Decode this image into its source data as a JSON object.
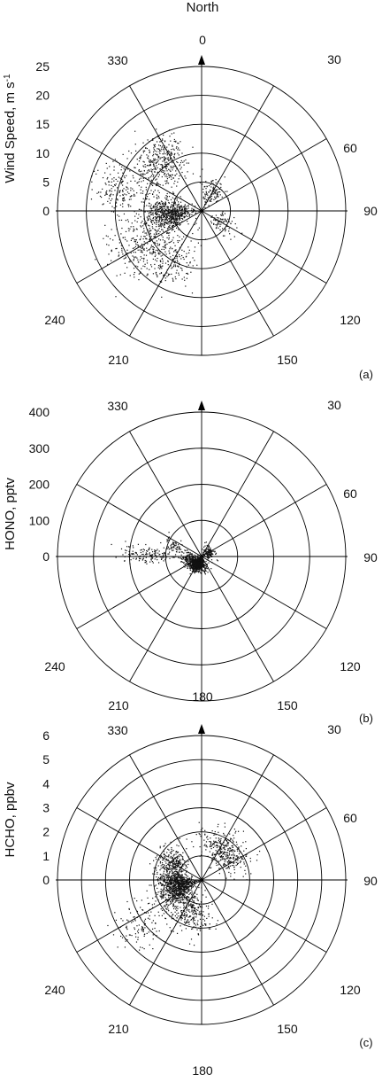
{
  "figure": {
    "north_label": "North",
    "direction_180_top": "180"
  },
  "chart_data": [
    {
      "type": "scatter",
      "coordinate_system": "polar",
      "panel_label": "(a)",
      "ylabel": "Wind Speed, m s",
      "ylabel_superscript": "-1",
      "radial_ticks": [
        "0",
        "5",
        "10",
        "15",
        "20",
        "25"
      ],
      "radial_range": [
        0,
        25
      ],
      "angle_labels": [
        "0",
        "30",
        "60",
        "90",
        "120",
        "150",
        "210",
        "240",
        "330"
      ],
      "grid": true,
      "point_clusters": [
        {
          "theta_deg": 265,
          "theta_spread": 25,
          "r": 6,
          "r_spread": 4,
          "count": 700
        },
        {
          "theta_deg": 320,
          "theta_spread": 22,
          "r": 11,
          "r_spread": 4,
          "count": 380
        },
        {
          "theta_deg": 285,
          "theta_spread": 15,
          "r": 15,
          "r_spread": 4,
          "count": 160
        },
        {
          "theta_deg": 240,
          "theta_spread": 25,
          "r": 12,
          "r_spread": 5,
          "count": 300
        },
        {
          "theta_deg": 210,
          "theta_spread": 22,
          "r": 10,
          "r_spread": 5,
          "count": 160
        },
        {
          "theta_deg": 30,
          "theta_spread": 25,
          "r": 4,
          "r_spread": 2,
          "count": 120
        },
        {
          "theta_deg": 120,
          "theta_spread": 25,
          "r": 4,
          "r_spread": 2.5,
          "count": 80
        }
      ]
    },
    {
      "type": "scatter",
      "coordinate_system": "polar",
      "panel_label": "(b)",
      "ylabel": "HONO, pptv",
      "radial_ticks": [
        "0",
        "100",
        "200",
        "300",
        "400"
      ],
      "radial_range": [
        0,
        400
      ],
      "angle_labels": [
        "30",
        "60",
        "90",
        "120",
        "150",
        "210",
        "240",
        "330"
      ],
      "grid": true,
      "point_clusters": [
        {
          "theta_deg": 200,
          "theta_spread": 40,
          "r": 25,
          "r_spread": 18,
          "count": 650
        },
        {
          "theta_deg": 250,
          "theta_spread": 35,
          "r": 35,
          "r_spread": 20,
          "count": 220
        },
        {
          "theta_deg": 272,
          "theta_spread": 8,
          "r": 150,
          "r_spread": 70,
          "count": 160
        },
        {
          "theta_deg": 292,
          "theta_spread": 12,
          "r": 80,
          "r_spread": 30,
          "count": 60
        },
        {
          "theta_deg": 60,
          "theta_spread": 40,
          "r": 25,
          "r_spread": 15,
          "count": 120
        }
      ]
    },
    {
      "type": "scatter",
      "coordinate_system": "polar",
      "panel_label": "(c)",
      "ylabel": "HCHO, ppbv",
      "radial_ticks": [
        "0",
        "1",
        "2",
        "3",
        "4",
        "5",
        "6"
      ],
      "radial_range": [
        0,
        6
      ],
      "angle_labels": [
        "30",
        "60",
        "90",
        "120",
        "150",
        "180",
        "210",
        "240",
        "330"
      ],
      "grid": true,
      "point_clusters": [
        {
          "theta_deg": 255,
          "theta_spread": 30,
          "r": 1.1,
          "r_spread": 0.7,
          "count": 900
        },
        {
          "theta_deg": 300,
          "theta_spread": 25,
          "r": 1.4,
          "r_spread": 0.6,
          "count": 260
        },
        {
          "theta_deg": 40,
          "theta_spread": 35,
          "r": 1.6,
          "r_spread": 0.7,
          "count": 350
        },
        {
          "theta_deg": 200,
          "theta_spread": 35,
          "r": 1.5,
          "r_spread": 0.8,
          "count": 300
        },
        {
          "theta_deg": 235,
          "theta_spread": 15,
          "r": 3.2,
          "r_spread": 1.0,
          "count": 110
        }
      ]
    }
  ]
}
